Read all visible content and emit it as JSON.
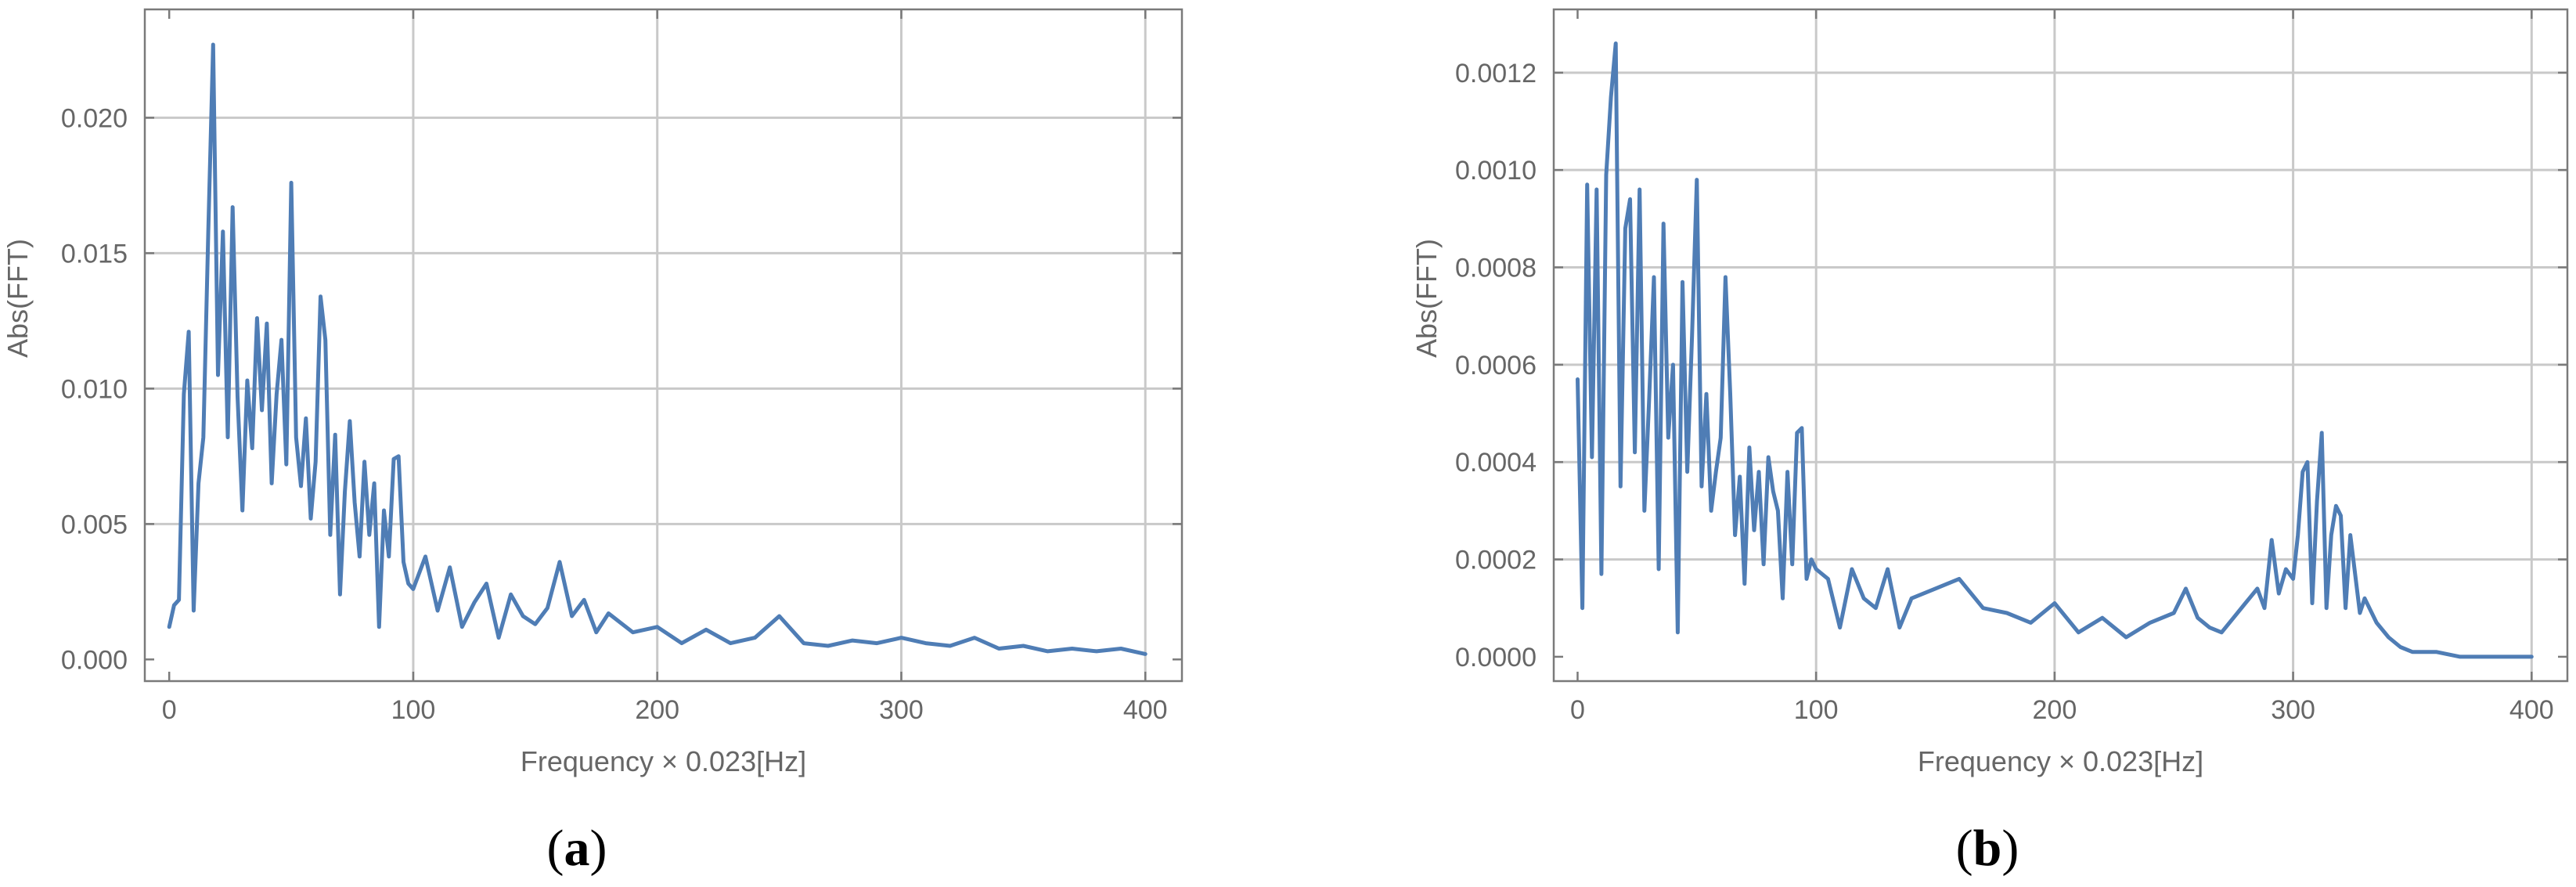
{
  "chart_data": [
    {
      "panel_label": "a",
      "type": "line",
      "title": "",
      "xlabel": "Frequency × 0.023[Hz]",
      "ylabel": "Abs(FFT)",
      "xlim": [
        -10,
        415
      ],
      "ylim": [
        -0.0008,
        0.024
      ],
      "xticks": [
        0,
        100,
        200,
        300,
        400
      ],
      "xtick_labels": [
        "0",
        "100",
        "200",
        "300",
        "400"
      ],
      "yticks": [
        0,
        0.005,
        0.01,
        0.015,
        0.02
      ],
      "ytick_labels": [
        "0.000",
        "0.005",
        "0.010",
        "0.015",
        "0.020"
      ],
      "grid": true,
      "line_color": "#4f7db5",
      "series": [
        {
          "x": [
            0,
            2,
            4,
            6,
            8,
            10,
            12,
            14,
            16,
            18,
            20,
            22,
            24,
            26,
            28,
            30,
            32,
            34,
            36,
            38,
            40,
            42,
            44,
            46,
            48,
            50,
            52,
            54,
            56,
            58,
            60,
            62,
            64,
            66,
            68,
            70,
            72,
            74,
            76,
            78,
            80,
            82,
            84,
            86,
            88,
            90,
            92,
            94,
            96,
            98,
            100,
            105,
            110,
            115,
            120,
            125,
            130,
            135,
            140,
            145,
            150,
            155,
            160,
            165,
            170,
            175,
            180,
            190,
            200,
            210,
            220,
            230,
            240,
            250,
            260,
            270,
            280,
            290,
            300,
            310,
            320,
            330,
            340,
            350,
            360,
            370,
            380,
            390,
            400
          ],
          "values": [
            0.0012,
            0.002,
            0.0022,
            0.0098,
            0.0121,
            0.0018,
            0.0065,
            0.0082,
            0.0158,
            0.0227,
            0.0105,
            0.0158,
            0.0082,
            0.0167,
            0.0097,
            0.0055,
            0.0103,
            0.0078,
            0.0126,
            0.0092,
            0.0124,
            0.0065,
            0.0098,
            0.0118,
            0.0072,
            0.0176,
            0.0082,
            0.0064,
            0.0089,
            0.0052,
            0.0073,
            0.0134,
            0.0118,
            0.0046,
            0.0083,
            0.0024,
            0.0062,
            0.0088,
            0.0058,
            0.0038,
            0.0073,
            0.0046,
            0.0065,
            0.0012,
            0.0055,
            0.0038,
            0.0074,
            0.0075,
            0.0036,
            0.0028,
            0.0026,
            0.0038,
            0.0018,
            0.0034,
            0.0012,
            0.0021,
            0.0028,
            0.0008,
            0.0024,
            0.0016,
            0.0013,
            0.0019,
            0.0036,
            0.0016,
            0.0022,
            0.001,
            0.0017,
            0.001,
            0.0012,
            0.0006,
            0.0011,
            0.0006,
            0.0008,
            0.0016,
            0.0006,
            0.0005,
            0.0007,
            0.0006,
            0.0008,
            0.0006,
            0.0005,
            0.0008,
            0.0004,
            0.0005,
            0.0003,
            0.0004,
            0.0003,
            0.0004,
            0.0002
          ]
        }
      ]
    },
    {
      "panel_label": "b",
      "type": "line",
      "title": "",
      "xlabel": "Frequency × 0.023[Hz]",
      "ylabel": "Abs(FFT)",
      "xlim": [
        -10,
        415
      ],
      "ylim": [
        -5e-05,
        0.00133
      ],
      "xticks": [
        0,
        100,
        200,
        300,
        400
      ],
      "xtick_labels": [
        "0",
        "100",
        "200",
        "300",
        "400"
      ],
      "yticks": [
        0,
        0.0002,
        0.0004,
        0.0006,
        0.0008,
        0.001,
        0.0012
      ],
      "ytick_labels": [
        "0.0000",
        "0.0002",
        "0.0004",
        "0.0006",
        "0.0008",
        "0.0010",
        "0.0012"
      ],
      "grid": true,
      "line_color": "#4f7db5",
      "series": [
        {
          "x": [
            0,
            2,
            4,
            6,
            8,
            10,
            12,
            14,
            16,
            18,
            20,
            22,
            24,
            26,
            28,
            30,
            32,
            34,
            36,
            38,
            40,
            42,
            44,
            46,
            48,
            50,
            52,
            54,
            56,
            58,
            60,
            62,
            64,
            66,
            68,
            70,
            72,
            74,
            76,
            78,
            80,
            82,
            84,
            86,
            88,
            90,
            92,
            94,
            96,
            98,
            100,
            105,
            110,
            115,
            120,
            125,
            130,
            135,
            140,
            150,
            160,
            170,
            180,
            190,
            200,
            210,
            220,
            230,
            240,
            250,
            255,
            260,
            265,
            270,
            275,
            280,
            285,
            288,
            291,
            294,
            297,
            300,
            302,
            304,
            306,
            308,
            310,
            312,
            314,
            316,
            318,
            320,
            322,
            324,
            326,
            328,
            330,
            335,
            340,
            345,
            350,
            360,
            370,
            380,
            390,
            400
          ],
          "values": [
            0.00057,
            0.0001,
            0.00097,
            0.00041,
            0.00096,
            0.00017,
            0.00099,
            0.00115,
            0.00126,
            0.00035,
            0.00088,
            0.00094,
            0.00042,
            0.00096,
            0.0003,
            0.00053,
            0.00078,
            0.00018,
            0.00089,
            0.00045,
            0.0006,
            5e-05,
            0.00077,
            0.00038,
            0.00066,
            0.00098,
            0.00035,
            0.00054,
            0.0003,
            0.00038,
            0.00045,
            0.00078,
            0.00054,
            0.00025,
            0.00037,
            0.00015,
            0.00043,
            0.00026,
            0.00038,
            0.00019,
            0.00041,
            0.00034,
            0.0003,
            0.00012,
            0.00038,
            0.00019,
            0.00046,
            0.00047,
            0.00016,
            0.0002,
            0.00018,
            0.00016,
            6e-05,
            0.00018,
            0.00012,
            0.0001,
            0.00018,
            6e-05,
            0.00012,
            0.00014,
            0.00016,
            0.0001,
            9e-05,
            7e-05,
            0.00011,
            5e-05,
            8e-05,
            4e-05,
            7e-05,
            9e-05,
            0.00014,
            8e-05,
            6e-05,
            5e-05,
            8e-05,
            0.00011,
            0.00014,
            0.0001,
            0.00024,
            0.00013,
            0.00018,
            0.00016,
            0.00025,
            0.00038,
            0.0004,
            0.00011,
            0.00032,
            0.00046,
            0.0001,
            0.00025,
            0.00031,
            0.00029,
            0.0001,
            0.00025,
            0.00017,
            9e-05,
            0.00012,
            7e-05,
            4e-05,
            2e-05,
            1e-05,
            1e-05,
            0.0,
            0.0,
            0.0,
            0.0
          ]
        }
      ]
    }
  ]
}
